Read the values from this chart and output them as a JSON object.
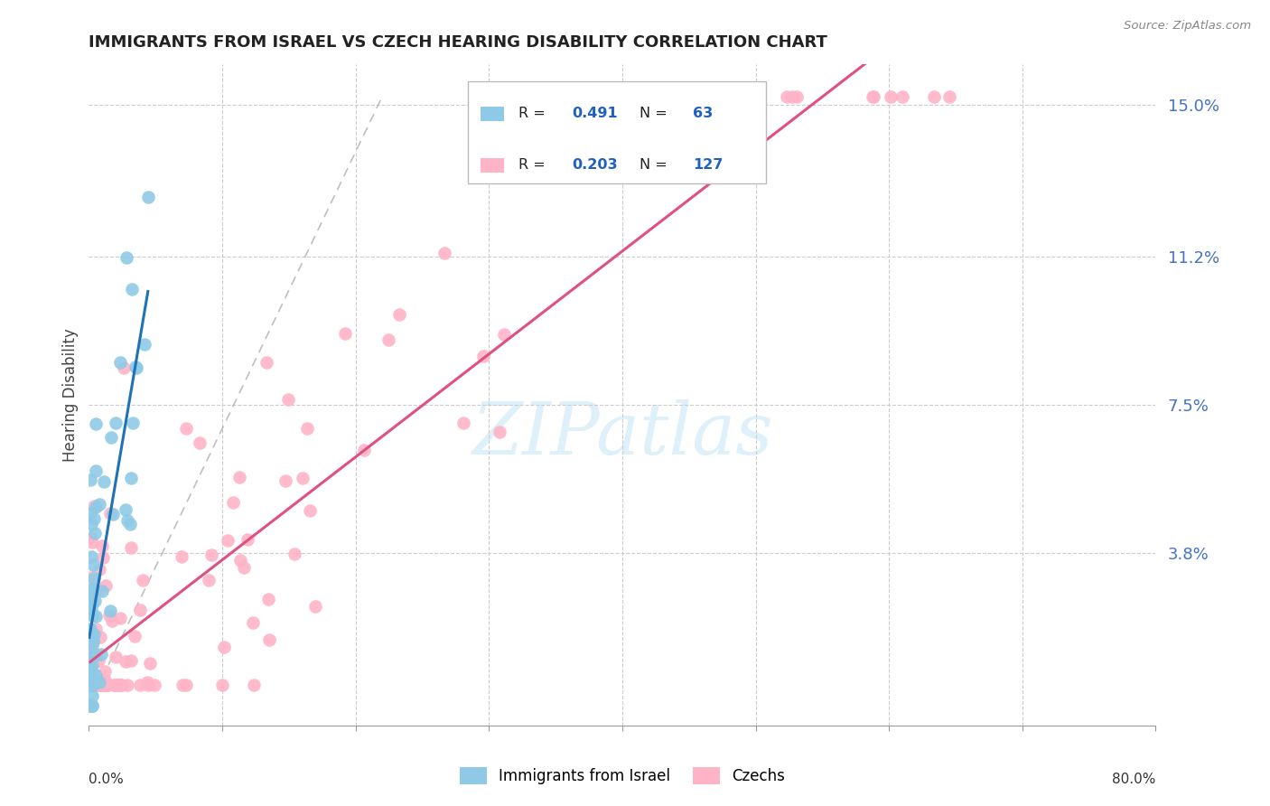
{
  "title": "IMMIGRANTS FROM ISRAEL VS CZECH HEARING DISABILITY CORRELATION CHART",
  "source": "Source: ZipAtlas.com",
  "ylabel": "Hearing Disability",
  "xlim": [
    0.0,
    0.8
  ],
  "ylim": [
    -0.005,
    0.16
  ],
  "israel_color": "#8ecae6",
  "czech_color": "#ffb3c6",
  "israel_line_color": "#2171b5",
  "czech_line_color": "#e05080",
  "grid_color": "#cccccc",
  "ytick_vals": [
    0.038,
    0.075,
    0.112,
    0.15
  ],
  "ytick_labels": [
    "3.8%",
    "7.5%",
    "11.2%",
    "15.0%"
  ],
  "ytick_color": "#4472C4",
  "israel_R": 0.491,
  "israel_N": 63,
  "czech_R": 0.203,
  "czech_N": 127,
  "israel_seed": 123,
  "czech_seed": 456,
  "watermark_color": "#c8e6f5"
}
